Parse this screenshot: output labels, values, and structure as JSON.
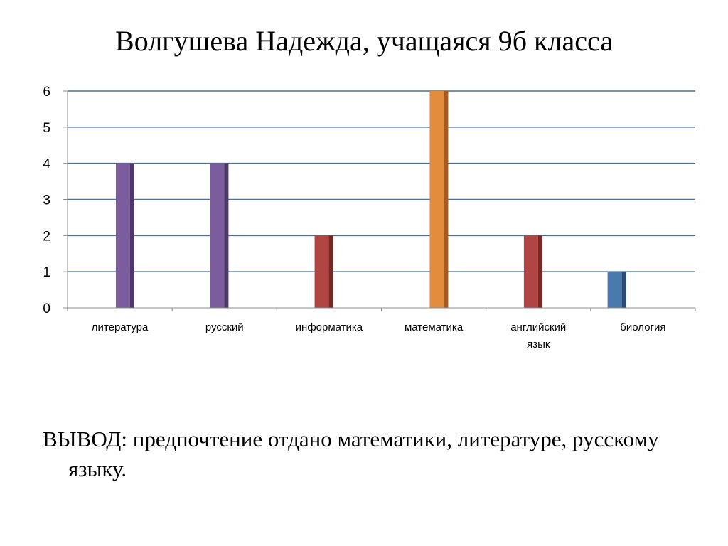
{
  "slide": {
    "title": "Волгушева Надежда, учащаяся 9б  класса"
  },
  "conclusion": {
    "label": "ВЫВОД",
    "text": ": предпочтение отдано математики, литературе, русскому языку."
  },
  "chart_data": {
    "type": "bar",
    "title": "",
    "xlabel": "",
    "ylabel": "",
    "categories": [
      [
        "литература"
      ],
      [
        "русский"
      ],
      [
        "информатика"
      ],
      [
        "математика"
      ],
      [
        "английский",
        "язык"
      ],
      [
        "биология"
      ]
    ],
    "values": [
      4,
      4,
      2,
      6,
      2,
      1
    ],
    "colors": [
      "#7b5c9c",
      "#7b5c9c",
      "#b04543",
      "#e38c3d",
      "#b04543",
      "#4a79ad"
    ],
    "dark_colors": [
      "#4c3766",
      "#4c3766",
      "#762a28",
      "#a65a1c",
      "#762a28",
      "#2a4d76"
    ],
    "bar_offset": [
      0.55,
      0.45,
      0.45,
      0.55,
      0.45,
      0.25
    ],
    "ylim": [
      0,
      6
    ],
    "yticks": [
      "0",
      "1",
      "2",
      "3",
      "4",
      "5",
      "6"
    ],
    "grid": true,
    "legend": "none"
  }
}
